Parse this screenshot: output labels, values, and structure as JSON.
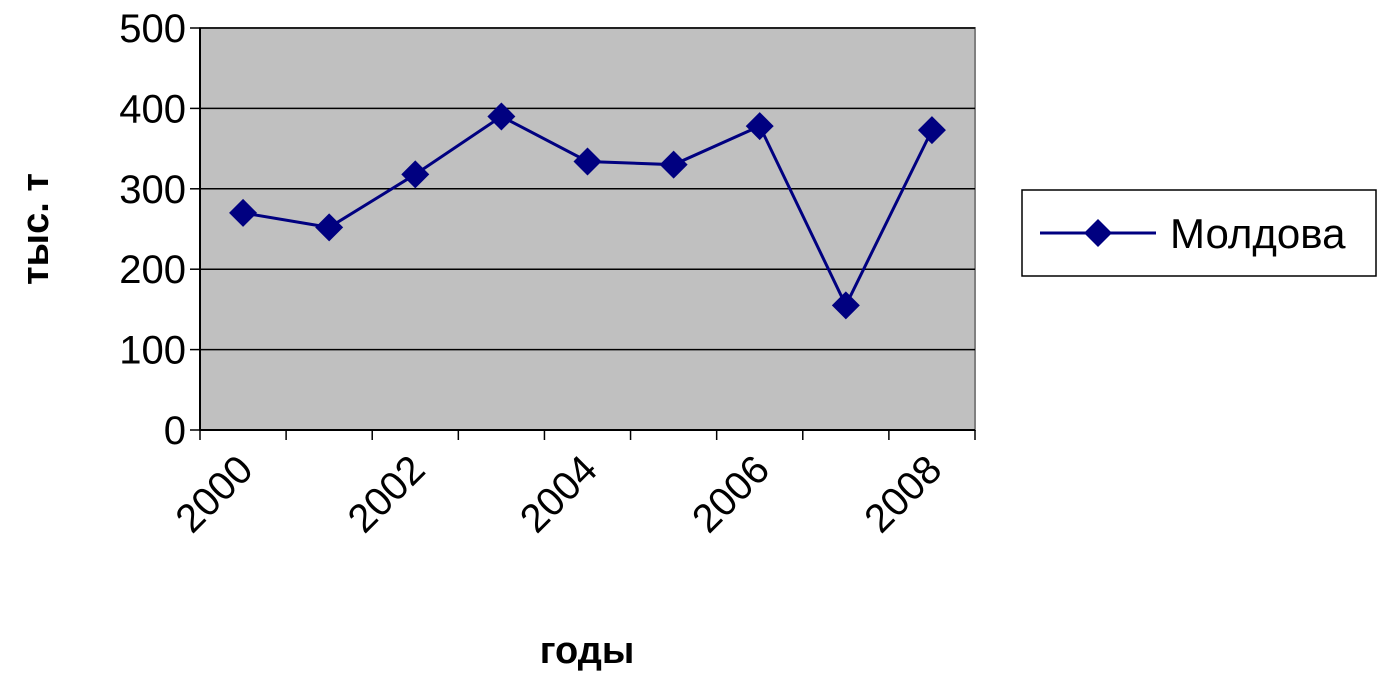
{
  "chart_data": {
    "type": "line",
    "title": "",
    "xlabel": "годы",
    "ylabel": "тыс. т",
    "x": [
      2000,
      2001,
      2002,
      2003,
      2004,
      2005,
      2006,
      2007,
      2008
    ],
    "x_tick_labels": [
      "2000",
      "2002",
      "2004",
      "2006",
      "2008"
    ],
    "ylim": [
      0,
      500
    ],
    "y_ticks": [
      0,
      100,
      200,
      300,
      400,
      500
    ],
    "grid": true,
    "legend_position": "right",
    "plot_background": "#c0c0c0",
    "series": [
      {
        "name": "Молдова",
        "color": "#000080",
        "marker": "diamond",
        "values": [
          270,
          252,
          318,
          390,
          334,
          330,
          378,
          155,
          373
        ]
      }
    ]
  }
}
